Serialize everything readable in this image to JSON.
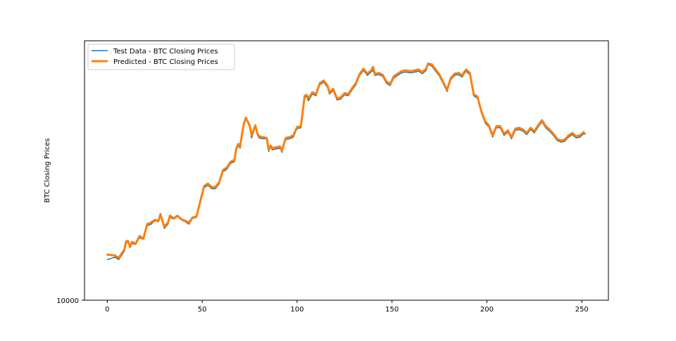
{
  "chart_data": {
    "type": "line",
    "title": "",
    "xlabel": "",
    "ylabel": "BTC Closing Prices",
    "xlim": [
      -12,
      264
    ],
    "ylim": [
      10000,
      40700
    ],
    "xticks": [
      0,
      50,
      100,
      150,
      200,
      250
    ],
    "xtick_labels": [
      "0",
      "50",
      "100",
      "150",
      "200",
      "250"
    ],
    "yticks": [
      10000
    ],
    "ytick_labels": [
      "10000"
    ],
    "grid": false,
    "legend": {
      "placement": "top-left"
    },
    "series": [
      {
        "name": "Test Data - BTC Closing Prices",
        "color": "#1f77b4",
        "keypoints": [
          [
            0,
            14800
          ],
          [
            4,
            15100
          ],
          [
            6,
            14800
          ],
          [
            9,
            15800
          ],
          [
            10,
            16800
          ],
          [
            11,
            16900
          ],
          [
            12,
            16200
          ],
          [
            13,
            16700
          ],
          [
            15,
            16600
          ],
          [
            17,
            17400
          ],
          [
            19,
            17200
          ],
          [
            21,
            18800
          ],
          [
            23,
            19000
          ],
          [
            25,
            19400
          ],
          [
            27,
            19300
          ],
          [
            28,
            20100
          ],
          [
            30,
            18500
          ],
          [
            32,
            19000
          ],
          [
            33,
            19800
          ],
          [
            35,
            19600
          ],
          [
            37,
            19900
          ],
          [
            39,
            19500
          ],
          [
            41,
            19300
          ],
          [
            43,
            19000
          ],
          [
            45,
            19700
          ],
          [
            47,
            19800
          ],
          [
            49,
            21500
          ],
          [
            51,
            23300
          ],
          [
            53,
            23600
          ],
          [
            55,
            23200
          ],
          [
            57,
            23200
          ],
          [
            59,
            23800
          ],
          [
            61,
            25200
          ],
          [
            63,
            25500
          ],
          [
            65,
            26200
          ],
          [
            67,
            26400
          ],
          [
            68,
            27800
          ],
          [
            69,
            28300
          ],
          [
            70,
            28000
          ],
          [
            71,
            29500
          ],
          [
            72,
            30700
          ],
          [
            73,
            31500
          ],
          [
            75,
            30500
          ],
          [
            76,
            29200
          ],
          [
            78,
            30500
          ],
          [
            79,
            29600
          ],
          [
            80,
            29200
          ],
          [
            82,
            29100
          ],
          [
            84,
            29100
          ],
          [
            85,
            27600
          ],
          [
            86,
            28100
          ],
          [
            87,
            27800
          ],
          [
            89,
            27900
          ],
          [
            91,
            28000
          ],
          [
            92,
            27500
          ],
          [
            94,
            29000
          ],
          [
            96,
            29100
          ],
          [
            98,
            29300
          ],
          [
            100,
            30300
          ],
          [
            102,
            30400
          ],
          [
            104,
            34000
          ],
          [
            105,
            34100
          ],
          [
            106,
            33600
          ],
          [
            108,
            34400
          ],
          [
            110,
            34200
          ],
          [
            112,
            35500
          ],
          [
            114,
            35800
          ],
          [
            116,
            35200
          ],
          [
            117,
            34400
          ],
          [
            119,
            34800
          ],
          [
            121,
            33700
          ],
          [
            123,
            33800
          ],
          [
            125,
            34300
          ],
          [
            127,
            34200
          ],
          [
            129,
            34900
          ],
          [
            131,
            35500
          ],
          [
            133,
            36600
          ],
          [
            135,
            37200
          ],
          [
            137,
            36600
          ],
          [
            139,
            37000
          ],
          [
            140,
            37200
          ],
          [
            141,
            36600
          ],
          [
            143,
            36700
          ],
          [
            145,
            36500
          ],
          [
            147,
            35700
          ],
          [
            149,
            35400
          ],
          [
            151,
            36300
          ],
          [
            153,
            36600
          ],
          [
            155,
            36900
          ],
          [
            157,
            37000
          ],
          [
            160,
            36900
          ],
          [
            162,
            37000
          ],
          [
            164,
            37100
          ],
          [
            166,
            36800
          ],
          [
            168,
            37200
          ],
          [
            169,
            37900
          ],
          [
            171,
            37700
          ],
          [
            173,
            37100
          ],
          [
            175,
            36500
          ],
          [
            177,
            35600
          ],
          [
            179,
            34700
          ],
          [
            181,
            36100
          ],
          [
            183,
            36600
          ],
          [
            185,
            36700
          ],
          [
            187,
            36400
          ],
          [
            188,
            36800
          ],
          [
            189,
            37100
          ],
          [
            191,
            36700
          ],
          [
            193,
            34200
          ],
          [
            195,
            33900
          ],
          [
            197,
            32200
          ],
          [
            199,
            31000
          ],
          [
            201,
            30500
          ],
          [
            203,
            29300
          ],
          [
            205,
            30400
          ],
          [
            207,
            30400
          ],
          [
            209,
            29500
          ],
          [
            211,
            29900
          ],
          [
            213,
            29100
          ],
          [
            215,
            30100
          ],
          [
            217,
            30200
          ],
          [
            219,
            30000
          ],
          [
            221,
            29600
          ],
          [
            223,
            30200
          ],
          [
            225,
            29800
          ],
          [
            227,
            30500
          ],
          [
            229,
            31100
          ],
          [
            231,
            30400
          ],
          [
            233,
            30000
          ],
          [
            235,
            29500
          ],
          [
            237,
            28900
          ],
          [
            239,
            28700
          ],
          [
            241,
            28800
          ],
          [
            243,
            29300
          ],
          [
            245,
            29600
          ],
          [
            247,
            29200
          ],
          [
            249,
            29300
          ],
          [
            251,
            29700
          ],
          [
            252,
            29700
          ]
        ]
      },
      {
        "name": "Predicted  - BTC Closing Prices",
        "color": "#ff7f0e",
        "keypoints": [
          [
            0,
            15400
          ],
          [
            4,
            15300
          ],
          [
            6,
            15000
          ],
          [
            9,
            16000
          ],
          [
            10,
            17000
          ],
          [
            11,
            17000
          ],
          [
            12,
            16300
          ],
          [
            13,
            16900
          ],
          [
            15,
            16700
          ],
          [
            17,
            17600
          ],
          [
            19,
            17300
          ],
          [
            21,
            19000
          ],
          [
            23,
            19200
          ],
          [
            25,
            19500
          ],
          [
            27,
            19400
          ],
          [
            28,
            20200
          ],
          [
            30,
            18700
          ],
          [
            32,
            19200
          ],
          [
            33,
            20000
          ],
          [
            35,
            19700
          ],
          [
            37,
            20000
          ],
          [
            39,
            19600
          ],
          [
            41,
            19400
          ],
          [
            43,
            19200
          ],
          [
            45,
            19800
          ],
          [
            47,
            19900
          ],
          [
            49,
            21700
          ],
          [
            51,
            23500
          ],
          [
            53,
            23800
          ],
          [
            55,
            23400
          ],
          [
            57,
            23400
          ],
          [
            59,
            24000
          ],
          [
            61,
            25400
          ],
          [
            63,
            25700
          ],
          [
            65,
            26400
          ],
          [
            67,
            26600
          ],
          [
            68,
            28000
          ],
          [
            69,
            28500
          ],
          [
            70,
            28200
          ],
          [
            71,
            29700
          ],
          [
            72,
            30900
          ],
          [
            73,
            31600
          ],
          [
            75,
            30700
          ],
          [
            76,
            29500
          ],
          [
            78,
            30700
          ],
          [
            79,
            29800
          ],
          [
            80,
            29400
          ],
          [
            82,
            29300
          ],
          [
            84,
            29200
          ],
          [
            85,
            27800
          ],
          [
            86,
            28300
          ],
          [
            87,
            28000
          ],
          [
            89,
            28100
          ],
          [
            91,
            28200
          ],
          [
            92,
            27700
          ],
          [
            94,
            29200
          ],
          [
            96,
            29300
          ],
          [
            98,
            29500
          ],
          [
            100,
            30500
          ],
          [
            102,
            30600
          ],
          [
            104,
            34200
          ],
          [
            105,
            34300
          ],
          [
            106,
            33900
          ],
          [
            108,
            34600
          ],
          [
            110,
            34400
          ],
          [
            112,
            35700
          ],
          [
            114,
            36000
          ],
          [
            116,
            35400
          ],
          [
            117,
            34600
          ],
          [
            119,
            35000
          ],
          [
            121,
            33900
          ],
          [
            123,
            34000
          ],
          [
            125,
            34500
          ],
          [
            127,
            34400
          ],
          [
            129,
            35100
          ],
          [
            131,
            35700
          ],
          [
            133,
            36800
          ],
          [
            135,
            37400
          ],
          [
            137,
            36800
          ],
          [
            139,
            37200
          ],
          [
            140,
            37600
          ],
          [
            141,
            36800
          ],
          [
            143,
            36900
          ],
          [
            145,
            36700
          ],
          [
            147,
            35900
          ],
          [
            149,
            35600
          ],
          [
            151,
            36500
          ],
          [
            153,
            36800
          ],
          [
            155,
            37100
          ],
          [
            157,
            37200
          ],
          [
            160,
            37100
          ],
          [
            162,
            37200
          ],
          [
            164,
            37300
          ],
          [
            166,
            37000
          ],
          [
            168,
            37400
          ],
          [
            169,
            38000
          ],
          [
            171,
            37900
          ],
          [
            173,
            37300
          ],
          [
            175,
            36700
          ],
          [
            177,
            35800
          ],
          [
            179,
            34900
          ],
          [
            181,
            36300
          ],
          [
            183,
            36800
          ],
          [
            185,
            36900
          ],
          [
            187,
            36600
          ],
          [
            188,
            37000
          ],
          [
            189,
            37300
          ],
          [
            191,
            36900
          ],
          [
            193,
            34400
          ],
          [
            195,
            34100
          ],
          [
            197,
            32400
          ],
          [
            199,
            31200
          ],
          [
            201,
            30700
          ],
          [
            203,
            29500
          ],
          [
            205,
            30600
          ],
          [
            207,
            30600
          ],
          [
            209,
            29700
          ],
          [
            211,
            30100
          ],
          [
            213,
            29300
          ],
          [
            215,
            30300
          ],
          [
            217,
            30400
          ],
          [
            219,
            30200
          ],
          [
            221,
            29800
          ],
          [
            223,
            30400
          ],
          [
            225,
            30000
          ],
          [
            227,
            30700
          ],
          [
            229,
            31300
          ],
          [
            231,
            30600
          ],
          [
            233,
            30200
          ],
          [
            235,
            29700
          ],
          [
            237,
            29100
          ],
          [
            239,
            28900
          ],
          [
            241,
            29000
          ],
          [
            243,
            29500
          ],
          [
            245,
            29800
          ],
          [
            247,
            29400
          ],
          [
            249,
            29500
          ],
          [
            251,
            29900
          ]
        ]
      }
    ]
  }
}
